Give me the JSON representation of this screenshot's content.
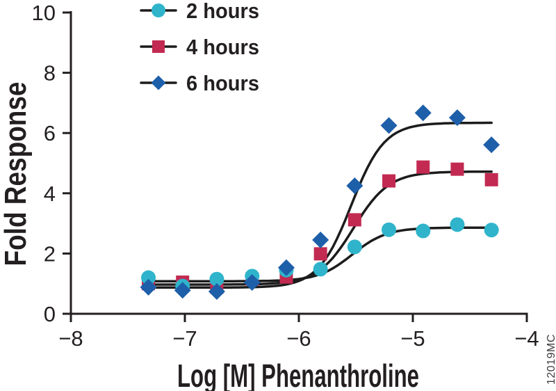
{
  "chart_data": {
    "type": "scatter",
    "title": "",
    "xlabel": "Log [M] Phenanthroline",
    "ylabel": "Fold Response",
    "watermark": "12019MC",
    "xlim": [
      -8,
      -4
    ],
    "ylim": [
      0,
      10
    ],
    "grid": false,
    "legend_position": "top-left-inside",
    "axis_color": "#231f20",
    "curve_color": "#1c1c1c",
    "x_ticks": [
      {
        "v": -8,
        "label": "−8"
      },
      {
        "v": -7,
        "label": "−7"
      },
      {
        "v": -6,
        "label": "−6"
      },
      {
        "v": -5,
        "label": "−5"
      },
      {
        "v": -4,
        "label": "−4"
      }
    ],
    "y_ticks": [
      {
        "v": 0,
        "label": "0"
      },
      {
        "v": 2,
        "label": "2"
      },
      {
        "v": 4,
        "label": "4"
      },
      {
        "v": 6,
        "label": "6"
      },
      {
        "v": 8,
        "label": "8"
      },
      {
        "v": 10,
        "label": "10"
      }
    ],
    "x": [
      -7.32,
      -7.02,
      -6.72,
      -6.41,
      -6.11,
      -5.81,
      -5.51,
      -5.21,
      -4.91,
      -4.61,
      -4.31
    ],
    "series": [
      {
        "name": "2 hours",
        "marker": "circle",
        "color": "#2fb4cb",
        "values": [
          1.2,
          0.92,
          1.15,
          1.25,
          1.45,
          1.48,
          2.22,
          2.79,
          2.75,
          2.96,
          2.78
        ],
        "fit": {
          "bottom": 1.08,
          "top": 2.86,
          "logEC50": -5.53,
          "hill": 2.9
        }
      },
      {
        "name": "4 hours",
        "marker": "square",
        "color": "#c22a52",
        "values": [
          1.0,
          1.05,
          0.88,
          1.15,
          1.22,
          1.99,
          3.12,
          4.41,
          4.87,
          4.8,
          4.45
        ],
        "fit": {
          "bottom": 0.97,
          "top": 4.72,
          "logEC50": -5.52,
          "hill": 2.8
        }
      },
      {
        "name": "6 hours",
        "marker": "diamond",
        "color": "#1e5fa9",
        "values": [
          0.88,
          0.78,
          0.74,
          1.04,
          1.53,
          2.45,
          4.25,
          6.25,
          6.67,
          6.51,
          5.61
        ],
        "fit": {
          "bottom": 0.87,
          "top": 6.34,
          "logEC50": -5.54,
          "hill": 3.0
        }
      }
    ]
  }
}
